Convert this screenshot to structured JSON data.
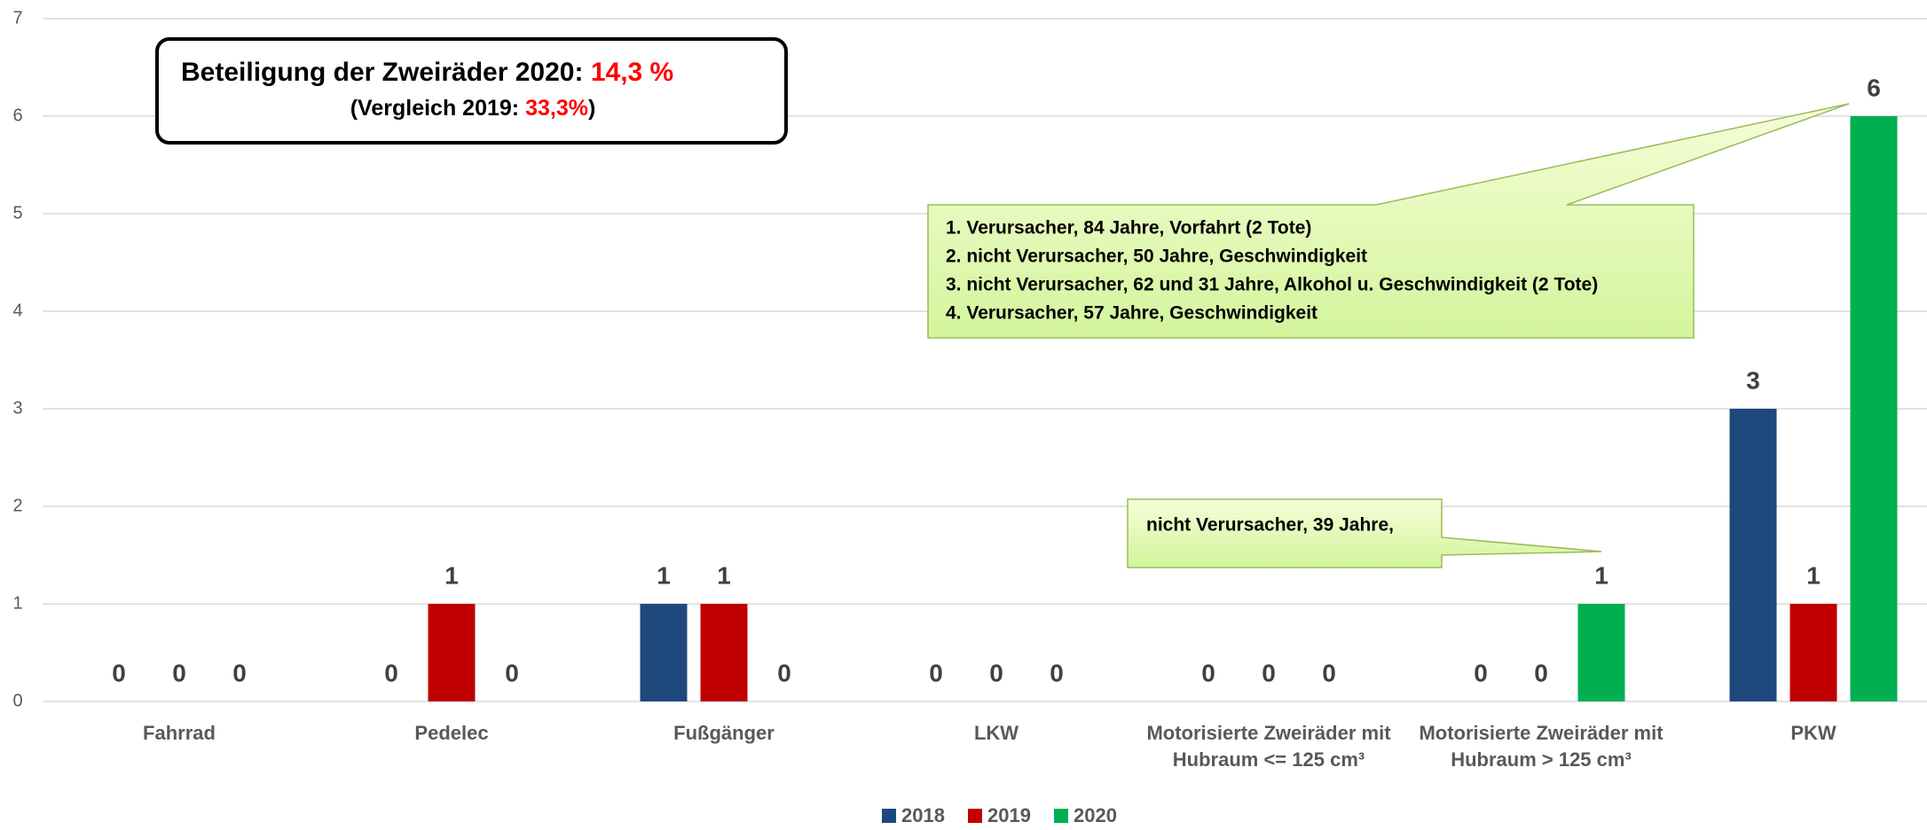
{
  "chart_data": {
    "type": "bar",
    "categories": [
      "Fahrrad",
      "Pedelec",
      "Fußgänger",
      "LKW",
      "Motorisierte Zweiräder mit Hubraum <= 125 cm³",
      "Motorisierte Zweiräder mit Hubraum > 125 cm³",
      "PKW"
    ],
    "series": [
      {
        "name": "2018",
        "color": "#1f497d",
        "values": [
          0,
          0,
          1,
          0,
          0,
          0,
          3
        ]
      },
      {
        "name": "2019",
        "color": "#c00000",
        "values": [
          0,
          1,
          1,
          0,
          0,
          0,
          1
        ]
      },
      {
        "name": "2020",
        "color": "#00b050",
        "values": [
          0,
          0,
          0,
          0,
          0,
          1,
          6
        ]
      }
    ],
    "ylim": [
      0,
      7
    ],
    "yticks": [
      0,
      1,
      2,
      3,
      4,
      5,
      6,
      7
    ],
    "grid": true,
    "legend": "bottom",
    "summary_box": {
      "line1": [
        "Beteiligung der Zweiräder 2020:",
        "14,3 %"
      ],
      "line2": [
        "(Vergleich 2019:",
        "33,3%",
        ")"
      ]
    },
    "annotations": [
      {
        "lines": [
          "1. Verursacher, 84 Jahre, Vorfahrt (2 Tote)",
          "2. nicht Verursacher, 50 Jahre, Geschwindigkeit",
          "3. nicht Verursacher, 62 und 31 Jahre, Alkohol u.  Geschwindigkeit (2 Tote)",
          "4. Verursacher, 57 Jahre, Geschwindigkeit"
        ]
      },
      {
        "lines": [
          "nicht Verursacher, 39 Jahre,"
        ]
      }
    ]
  }
}
